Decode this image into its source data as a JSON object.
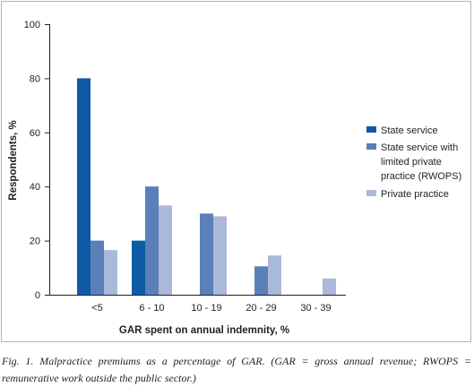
{
  "chart_data": {
    "type": "bar",
    "categories": [
      "<5",
      "6 - 10",
      "10 - 19",
      "20 - 29",
      "30 - 39"
    ],
    "series": [
      {
        "name": "State service",
        "color": "#0d5ba6",
        "values": [
          80,
          20,
          0,
          0,
          0
        ]
      },
      {
        "name": "State service with limited private practice (RWOPS)",
        "legend_lines": [
          "State service with",
          "limited private",
          "practice (RWOPS)"
        ],
        "color": "#5b7fb8",
        "values": [
          20,
          40,
          30,
          10.5,
          0
        ]
      },
      {
        "name": "Private practice",
        "color": "#aab8d9",
        "values": [
          16.5,
          33,
          29,
          14.5,
          6
        ]
      }
    ],
    "xlabel": "GAR spent on annual indemnity, %",
    "ylabel": "Respondents, %",
    "ylim": [
      0,
      100
    ],
    "yticks": [
      0,
      20,
      40,
      60,
      80,
      100
    ],
    "grid": false,
    "legend_position": "right"
  },
  "caption": "Fig. 1. Malpractice premiums as a percentage of GAR. (GAR = gross annual revenue; RWOPS = remunerative work outside the public sector.)"
}
